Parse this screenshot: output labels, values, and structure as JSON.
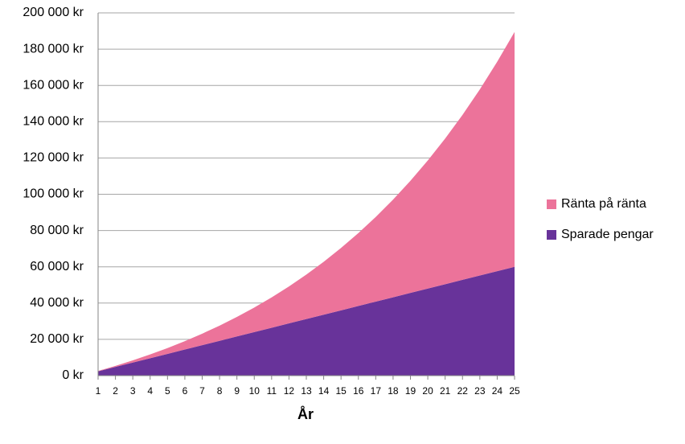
{
  "chart_data": {
    "type": "stacked_area",
    "xlabel": "År",
    "categories": [
      "1",
      "2",
      "3",
      "4",
      "5",
      "6",
      "7",
      "8",
      "9",
      "10",
      "11",
      "12",
      "13",
      "14",
      "15",
      "16",
      "17",
      "18",
      "19",
      "20",
      "21",
      "22",
      "23",
      "24",
      "25"
    ],
    "series": [
      {
        "name": "Sparade pengar",
        "color": "#68339a",
        "values": [
          2400,
          4800,
          7200,
          9600,
          12000,
          14400,
          16800,
          19200,
          21600,
          24000,
          26400,
          28800,
          31200,
          33600,
          36000,
          38400,
          40800,
          43200,
          45600,
          48000,
          50400,
          52800,
          55200,
          57600,
          60000
        ]
      },
      {
        "name": "Ränta på ränta",
        "color": "#ec739a",
        "values": [
          192,
          591,
          1215,
          2080,
          3206,
          4615,
          6328,
          8370,
          10768,
          13549,
          16745,
          20389,
          24516,
          29165,
          34378,
          40201,
          46681,
          53871,
          61829,
          70615,
          80296,
          90944,
          102635,
          115454,
          129491
        ]
      }
    ],
    "ylim": [
      0,
      200000
    ],
    "yticks": [
      {
        "value": 0,
        "label": "0 kr"
      },
      {
        "value": 20000,
        "label": "20 000 kr"
      },
      {
        "value": 40000,
        "label": "40 000 kr"
      },
      {
        "value": 60000,
        "label": "60 000 kr"
      },
      {
        "value": 80000,
        "label": "80 000 kr"
      },
      {
        "value": 100000,
        "label": "100 000 kr"
      },
      {
        "value": 120000,
        "label": "120 000 kr"
      },
      {
        "value": 140000,
        "label": "140 000 kr"
      },
      {
        "value": 160000,
        "label": "160 000 kr"
      },
      {
        "value": 180000,
        "label": "180 000 kr"
      },
      {
        "value": 200000,
        "label": "200 000 kr"
      }
    ],
    "grid": true,
    "legend": "right"
  }
}
